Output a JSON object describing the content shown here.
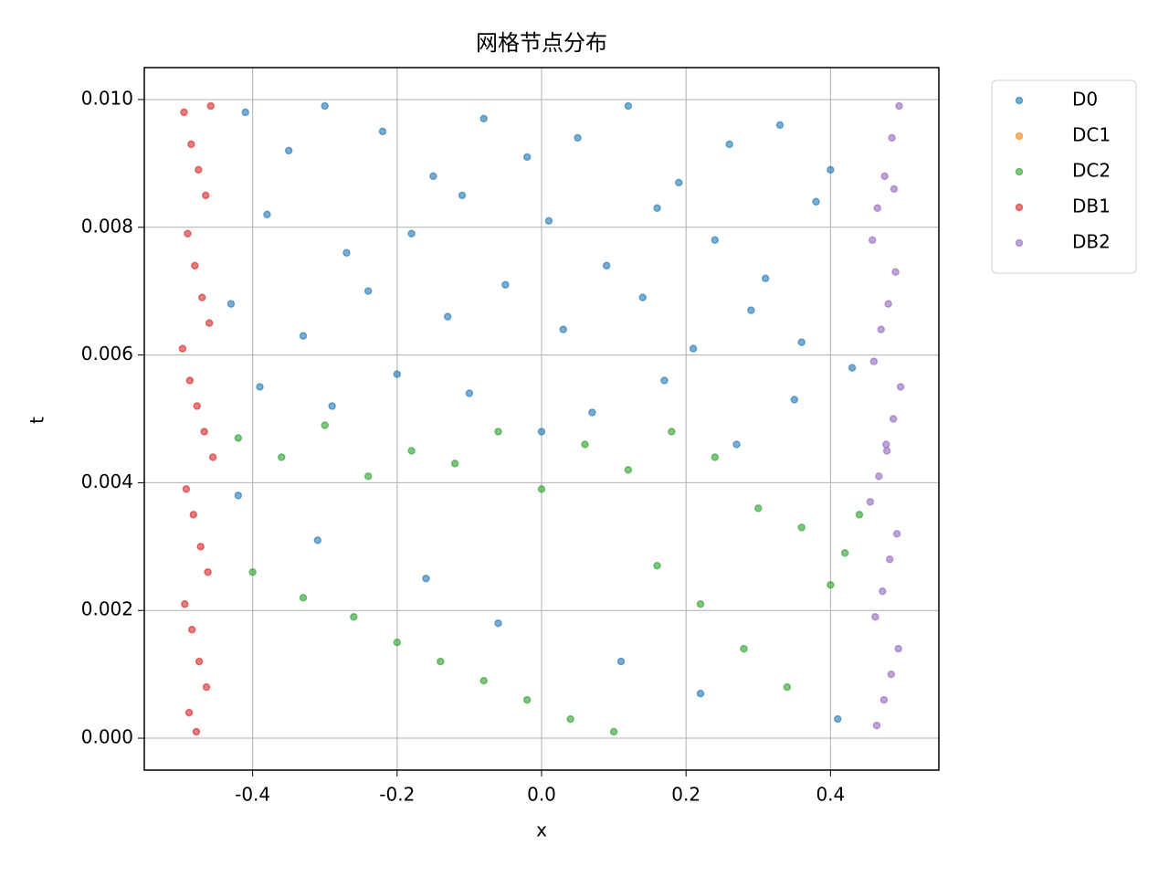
{
  "chart_data": {
    "type": "scatter",
    "title": "网格节点分布",
    "xlabel": "x",
    "ylabel": "t",
    "xlim": [
      -0.55,
      0.55
    ],
    "ylim": [
      -0.0005,
      0.0105
    ],
    "xticks": [
      -0.4,
      -0.2,
      {
        "value": 0,
        "label": "0.0"
      },
      0.2,
      0.4
    ],
    "yticks": [
      {
        "value": 0,
        "label": "0.000"
      },
      {
        "value": 0.002,
        "label": "0.002"
      },
      {
        "value": 0.004,
        "label": "0.004"
      },
      {
        "value": 0.006,
        "label": "0.006"
      },
      {
        "value": 0.008,
        "label": "0.008"
      },
      {
        "value": 0.01,
        "label": "0.010"
      }
    ],
    "grid": true,
    "legend": "outside-right",
    "alpha": 0.6,
    "series": [
      {
        "name": "D0",
        "color": "#1f77b4",
        "x": [
          -0.41,
          -0.35,
          -0.3,
          -0.22,
          -0.15,
          -0.08,
          -0.02,
          0.05,
          0.12,
          0.19,
          0.26,
          0.33,
          0.4,
          -0.38,
          -0.27,
          -0.18,
          -0.11,
          0.01,
          0.09,
          0.16,
          0.24,
          0.31,
          0.38,
          -0.43,
          -0.33,
          -0.24,
          -0.13,
          -0.05,
          0.03,
          0.14,
          0.21,
          0.29,
          0.36,
          0.43,
          -0.39,
          -0.29,
          -0.2,
          -0.1,
          0.0,
          0.07,
          0.17,
          0.27,
          0.35,
          -0.42,
          -0.31,
          -0.16,
          -0.06,
          0.11,
          0.22,
          0.41
        ],
        "y": [
          0.0098,
          0.0092,
          0.0099,
          0.0095,
          0.0088,
          0.0097,
          0.0091,
          0.0094,
          0.0099,
          0.0087,
          0.0093,
          0.0096,
          0.0089,
          0.0082,
          0.0076,
          0.0079,
          0.0085,
          0.0081,
          0.0074,
          0.0083,
          0.0078,
          0.0072,
          0.0084,
          0.0068,
          0.0063,
          0.007,
          0.0066,
          0.0071,
          0.0064,
          0.0069,
          0.0061,
          0.0067,
          0.0062,
          0.0058,
          0.0055,
          0.0052,
          0.0057,
          0.0054,
          0.0048,
          0.0051,
          0.0056,
          0.0046,
          0.0053,
          0.0038,
          0.0031,
          0.0025,
          0.0018,
          0.0012,
          0.0007,
          0.0003
        ]
      },
      {
        "name": "DC1",
        "color": "#ff7f0e",
        "x": [],
        "y": []
      },
      {
        "name": "DC2",
        "color": "#2ca02c",
        "x": [
          -0.42,
          -0.36,
          -0.3,
          -0.24,
          -0.18,
          -0.12,
          -0.06,
          0.0,
          0.06,
          0.12,
          0.18,
          0.24,
          0.3,
          0.36,
          0.42,
          -0.4,
          -0.33,
          -0.26,
          -0.2,
          -0.14,
          -0.08,
          -0.02,
          0.04,
          0.1,
          0.16,
          0.22,
          0.28,
          0.34,
          0.4,
          0.44
        ],
        "y": [
          0.0047,
          0.0044,
          0.0049,
          0.0041,
          0.0045,
          0.0043,
          0.0048,
          0.0039,
          0.0046,
          0.0042,
          0.0048,
          0.0044,
          0.0036,
          0.0033,
          0.0029,
          0.0026,
          0.0022,
          0.0019,
          0.0015,
          0.0012,
          0.0009,
          0.0006,
          0.0003,
          0.0001,
          0.0027,
          0.0021,
          0.0014,
          0.0008,
          0.0024,
          0.0035
        ]
      },
      {
        "name": "DB1",
        "color": "#d62728",
        "x": [
          -0.495,
          -0.485,
          -0.475,
          -0.465,
          -0.458,
          -0.49,
          -0.48,
          -0.47,
          -0.46,
          -0.497,
          -0.487,
          -0.477,
          -0.467,
          -0.455,
          -0.492,
          -0.482,
          -0.472,
          -0.462,
          -0.494,
          -0.484,
          -0.474,
          -0.464,
          -0.488,
          -0.478
        ],
        "y": [
          0.0098,
          0.0093,
          0.0089,
          0.0085,
          0.0099,
          0.0079,
          0.0074,
          0.0069,
          0.0065,
          0.0061,
          0.0056,
          0.0052,
          0.0048,
          0.0044,
          0.0039,
          0.0035,
          0.003,
          0.0026,
          0.0021,
          0.0017,
          0.0012,
          0.0008,
          0.0004,
          0.0001
        ]
      },
      {
        "name": "DB2",
        "color": "#9467bd",
        "x": [
          0.495,
          0.485,
          0.475,
          0.465,
          0.458,
          0.49,
          0.48,
          0.47,
          0.46,
          0.497,
          0.487,
          0.477,
          0.467,
          0.455,
          0.492,
          0.482,
          0.472,
          0.462,
          0.494,
          0.484,
          0.474,
          0.464,
          0.488,
          0.478
        ],
        "y": [
          0.0099,
          0.0094,
          0.0088,
          0.0083,
          0.0078,
          0.0073,
          0.0068,
          0.0064,
          0.0059,
          0.0055,
          0.005,
          0.0046,
          0.0041,
          0.0037,
          0.0032,
          0.0028,
          0.0023,
          0.0019,
          0.0014,
          0.001,
          0.0006,
          0.0002,
          0.0086,
          0.0045
        ]
      }
    ]
  }
}
